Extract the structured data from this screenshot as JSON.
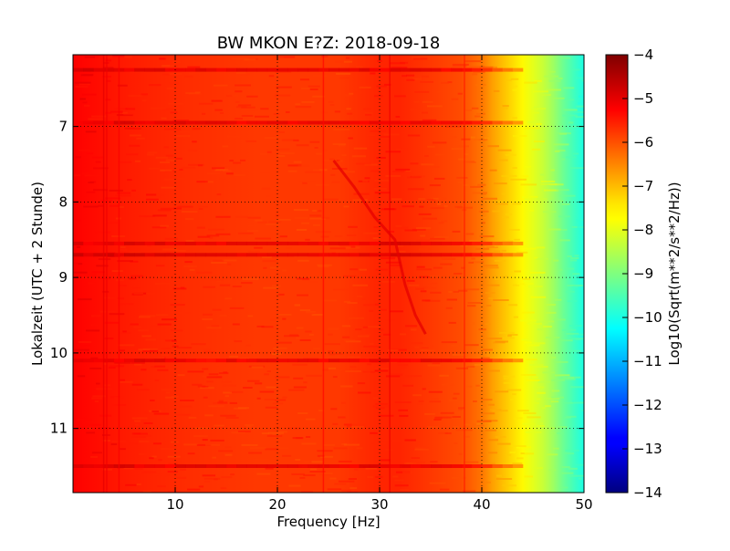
{
  "chart_data": {
    "type": "heatmap",
    "title": "BW MKON E?Z: 2018-09-18",
    "xlabel": "Frequency [Hz]",
    "ylabel": "Lokalzeit (UTC + 2 Stunde)",
    "xlim": [
      0,
      50
    ],
    "ylim": [
      11.85,
      6.05
    ],
    "y_inverted": true,
    "x_ticks": [
      10,
      20,
      30,
      40,
      50
    ],
    "y_ticks": [
      7,
      8,
      9,
      10,
      11
    ],
    "grid": true,
    "grid_style": "dotted",
    "colormap": "jet",
    "colorbar": {
      "label": "Log10(Sqrt(m**2/s**2/Hz))",
      "range": [
        -14,
        -4
      ],
      "ticks": [
        -4,
        -5,
        -6,
        -7,
        -8,
        -9,
        -10,
        -11,
        -12,
        -13,
        -14
      ]
    },
    "frequency_profile": {
      "frequency_hz": [
        0,
        1,
        3,
        5,
        8,
        12,
        18,
        22,
        26,
        30,
        32,
        35,
        38,
        40,
        41,
        42,
        43,
        44,
        45,
        46,
        47,
        48,
        49,
        50
      ],
      "log10_amplitude": [
        -5.2,
        -5.3,
        -5.4,
        -5.5,
        -5.6,
        -5.7,
        -5.8,
        -5.8,
        -5.8,
        -5.6,
        -5.6,
        -5.8,
        -6.0,
        -6.4,
        -6.8,
        -7.1,
        -7.4,
        -7.7,
        -8.0,
        -8.3,
        -8.7,
        -9.2,
        -9.6,
        -10.0
      ]
    },
    "features": [
      {
        "type": "line",
        "frequency_hz": 3.0,
        "log10_amplitude": -5.0
      },
      {
        "type": "line",
        "frequency_hz": 3.3,
        "log10_amplitude": -5.1
      },
      {
        "type": "line",
        "frequency_hz": 4.5,
        "log10_amplitude": -5.2
      },
      {
        "type": "line",
        "frequency_hz": 24.5,
        "log10_amplitude": -5.3
      },
      {
        "type": "line",
        "frequency_hz": 31.0,
        "log10_amplitude": -5.1
      },
      {
        "type": "line",
        "frequency_hz": 38.3,
        "log10_amplitude": -5.5
      },
      {
        "type": "drift",
        "points": [
          [
            25.5,
            7.45
          ],
          [
            27.5,
            7.8
          ],
          [
            29.5,
            8.2
          ],
          [
            31.5,
            8.5
          ],
          [
            32.5,
            9.1
          ],
          [
            33.5,
            9.5
          ],
          [
            34.5,
            9.75
          ]
        ],
        "log10_amplitude": -5.0
      }
    ],
    "bands": [
      {
        "time": 6.25,
        "log10_amplitude": -5.0
      },
      {
        "time": 6.95,
        "log10_amplitude": -5.0
      },
      {
        "time": 8.55,
        "log10_amplitude": -5.0
      },
      {
        "time": 8.7,
        "log10_amplitude": -4.9
      },
      {
        "time": 10.1,
        "log10_amplitude": -5.1
      },
      {
        "time": 11.5,
        "log10_amplitude": -5.0
      }
    ]
  }
}
